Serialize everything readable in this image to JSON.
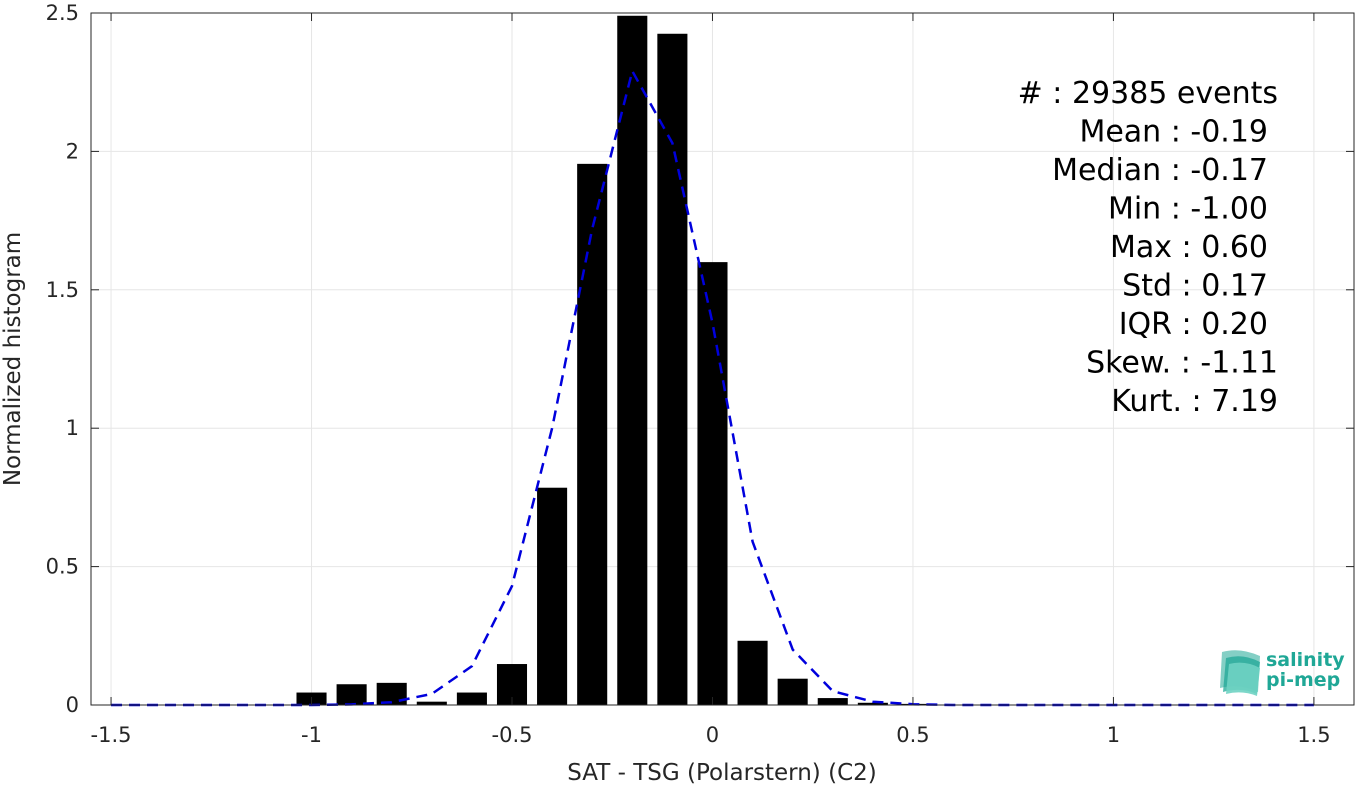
{
  "chart_data": {
    "type": "bar",
    "xlabel": "SAT - TSG (Polarstern) (C2)",
    "ylabel": "Normalized histogram",
    "xlim": [
      -1.55,
      1.6
    ],
    "ylim": [
      0,
      2.5
    ],
    "x_ticks": [
      -1.5,
      -1,
      -0.5,
      0,
      0.5,
      1,
      1.5
    ],
    "x_tick_labels": [
      "-1.5",
      "-1",
      "-0.5",
      "0",
      "0.5",
      "1",
      "1.5"
    ],
    "y_ticks": [
      0,
      0.5,
      1,
      1.5,
      2,
      2.5
    ],
    "y_tick_labels": [
      "0",
      "0.5",
      "1",
      "1.5",
      "2",
      "2.5"
    ],
    "grid": true,
    "bar_color": "#000000",
    "bar_width": 0.075,
    "bars": {
      "x": [
        -1.0,
        -0.9,
        -0.8,
        -0.7,
        -0.6,
        -0.5,
        -0.4,
        -0.3,
        -0.2,
        -0.1,
        0.0,
        0.1,
        0.2,
        0.3,
        0.4,
        0.5
      ],
      "values": [
        0.045,
        0.075,
        0.08,
        0.012,
        0.045,
        0.148,
        0.785,
        1.955,
        2.49,
        2.425,
        1.6,
        0.232,
        0.095,
        0.025,
        0.008,
        0.004
      ]
    },
    "fit_curve": {
      "color": "#0000dd",
      "style": "dashed",
      "x": [
        -1.5,
        -1.4,
        -1.3,
        -1.2,
        -1.1,
        -1.0,
        -0.9,
        -0.8,
        -0.7,
        -0.6,
        -0.5,
        -0.4,
        -0.3,
        -0.2,
        -0.1,
        0.0,
        0.1,
        0.2,
        0.3,
        0.4,
        0.5,
        0.6,
        0.7,
        0.8,
        0.9,
        1.0,
        1.1,
        1.2,
        1.3,
        1.4,
        1.5
      ],
      "y": [
        0,
        0,
        0,
        0,
        0,
        0,
        0.002,
        0.01,
        0.04,
        0.14,
        0.43,
        1.0,
        1.72,
        2.29,
        2.03,
        1.38,
        0.59,
        0.2,
        0.05,
        0.012,
        0.003,
        0,
        0,
        0,
        0,
        0,
        0,
        0,
        0,
        0,
        0
      ]
    },
    "stats": [
      "#  : 29385 events",
      "Mean : -0.19",
      "Median : -0.17",
      "Min : -1.00",
      "Max : 0.60",
      "Std : 0.17",
      "IQR : 0.20",
      "Skew. : -1.11",
      "Kurt. : 7.19"
    ]
  },
  "logo": {
    "line1": "salinity",
    "line2": "pi-mep"
  }
}
